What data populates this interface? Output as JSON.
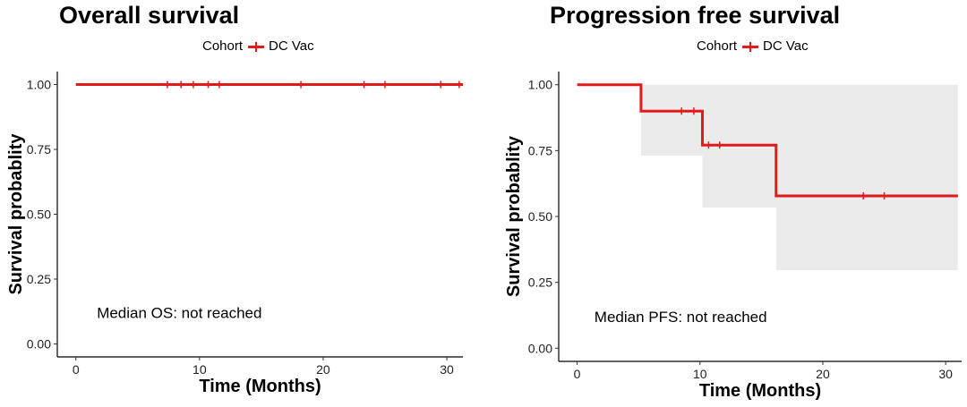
{
  "chart_data": [
    {
      "type": "line",
      "title": "Overall survival",
      "legend": {
        "title": "Cohort",
        "entries": [
          "DC Vac"
        ],
        "placement": "top"
      },
      "xlabel": "Time (Months)",
      "ylabel": "Survival probablity",
      "xlim": [
        -1.5,
        31.3
      ],
      "ylim": [
        -0.05,
        1.05
      ],
      "xticks": [
        0,
        10,
        20,
        30
      ],
      "yticks": [
        0.0,
        0.25,
        0.5,
        0.75,
        1.0
      ],
      "ytick_labels": [
        "0.00",
        "0.25",
        "0.50",
        "0.75",
        "1.00"
      ],
      "series": [
        {
          "name": "DC Vac",
          "color": "#e31a1c",
          "step": [
            [
              0,
              1.0
            ],
            [
              31.3,
              1.0
            ]
          ],
          "censor": [
            [
              7.4,
              1.0
            ],
            [
              8.5,
              1.0
            ],
            [
              9.5,
              1.0
            ],
            [
              10.7,
              1.0
            ],
            [
              11.6,
              1.0
            ],
            [
              18.2,
              1.0
            ],
            [
              23.3,
              1.0
            ],
            [
              25.0,
              1.0
            ],
            [
              29.5,
              1.0
            ],
            [
              31.0,
              1.0
            ]
          ]
        }
      ],
      "annotation": {
        "text": "Median OS: not reached",
        "x": 1.7,
        "y": 0.1
      }
    },
    {
      "type": "line",
      "title": "Progression free survival",
      "legend": {
        "title": "Cohort",
        "entries": [
          "DC Vac"
        ],
        "placement": "top"
      },
      "xlabel": "Time (Months)",
      "ylabel": "Survival probablity",
      "xlim": [
        -1.5,
        31.3
      ],
      "ylim": [
        -0.05,
        1.05
      ],
      "xticks": [
        0,
        10,
        20,
        30
      ],
      "yticks": [
        0.0,
        0.25,
        0.5,
        0.75,
        1.0
      ],
      "ytick_labels": [
        "0.00",
        "0.25",
        "0.50",
        "0.75",
        "1.00"
      ],
      "series": [
        {
          "name": "DC Vac",
          "color": "#e31a1c",
          "step": [
            [
              0,
              1.0
            ],
            [
              5.2,
              1.0
            ],
            [
              5.2,
              0.9
            ],
            [
              10.2,
              0.9
            ],
            [
              10.2,
              0.771
            ],
            [
              16.2,
              0.771
            ],
            [
              16.2,
              0.578
            ],
            [
              31.0,
              0.578
            ]
          ],
          "ci_band": [
            {
              "x0": 5.2,
              "x1": 10.2,
              "lo": 0.731,
              "hi": 1.0
            },
            {
              "x0": 10.2,
              "x1": 16.2,
              "lo": 0.534,
              "hi": 1.0
            },
            {
              "x0": 16.2,
              "x1": 31.0,
              "lo": 0.296,
              "hi": 1.0
            }
          ],
          "censor": [
            [
              8.5,
              0.9
            ],
            [
              9.5,
              0.9
            ],
            [
              10.7,
              0.771
            ],
            [
              11.6,
              0.771
            ],
            [
              23.3,
              0.578
            ],
            [
              25.0,
              0.578
            ]
          ]
        }
      ],
      "annotation": {
        "text": "Median PFS: not reached",
        "x": 1.4,
        "y": 0.1
      }
    }
  ]
}
